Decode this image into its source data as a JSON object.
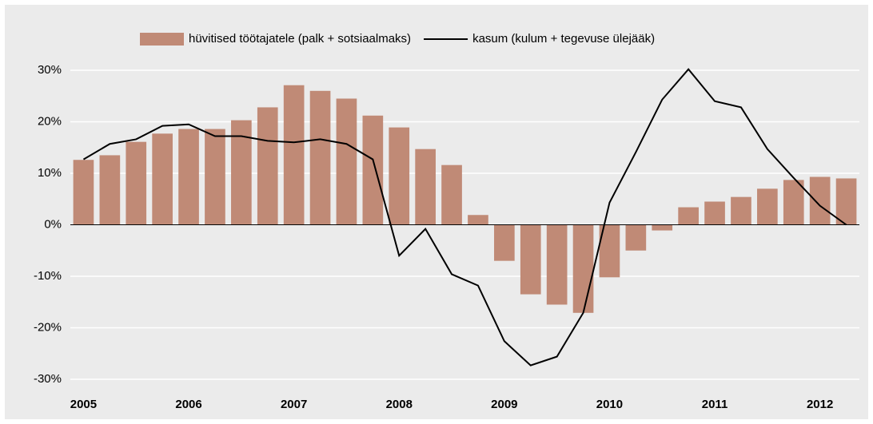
{
  "chart_data": {
    "type": "bar_line",
    "categories": [
      "2005",
      null,
      null,
      null,
      "2006",
      null,
      null,
      null,
      "2007",
      null,
      null,
      null,
      "2008",
      null,
      null,
      null,
      "2009",
      null,
      null,
      null,
      "2010",
      null,
      null,
      null,
      "2011",
      null,
      null,
      null,
      "2012",
      null
    ],
    "series": [
      {
        "name": "hüvitised töötajatele (palk + sotsiaalmaks)",
        "type": "bar",
        "color": "#c08a76",
        "values": [
          12.6,
          13.5,
          16.1,
          17.7,
          18.6,
          18.6,
          20.3,
          22.8,
          27.1,
          26.0,
          24.5,
          21.2,
          18.9,
          14.7,
          11.6,
          1.9,
          -7.0,
          -13.5,
          -15.5,
          -17.1,
          -10.2,
          -5.0,
          -1.1,
          3.4,
          4.5,
          5.4,
          7.0,
          8.7,
          9.3,
          9.0
        ]
      },
      {
        "name": "kasum (kulum + tegevuse ülejääk)",
        "type": "line",
        "color": "#000000",
        "values": [
          12.7,
          15.7,
          16.6,
          19.2,
          19.5,
          17.2,
          17.2,
          16.3,
          16.0,
          16.6,
          15.7,
          12.7,
          -6.0,
          -0.8,
          -9.6,
          -11.8,
          -22.6,
          -27.3,
          -25.6,
          -17.1,
          4.3,
          14.1,
          24.3,
          30.2,
          24.0,
          22.8,
          14.7,
          9.1,
          3.7,
          0
        ]
      }
    ],
    "ylim": [
      -30,
      30
    ],
    "yticks": [
      {
        "value": -30,
        "label": "-30%"
      },
      {
        "value": -20,
        "label": "-20%"
      },
      {
        "value": -10,
        "label": "-10%"
      },
      {
        "value": 0,
        "label": "0%"
      },
      {
        "value": 10,
        "label": "10%"
      },
      {
        "value": 20,
        "label": "20%"
      },
      {
        "value": 30,
        "label": "30%"
      }
    ],
    "grid": true,
    "legend": "top"
  }
}
